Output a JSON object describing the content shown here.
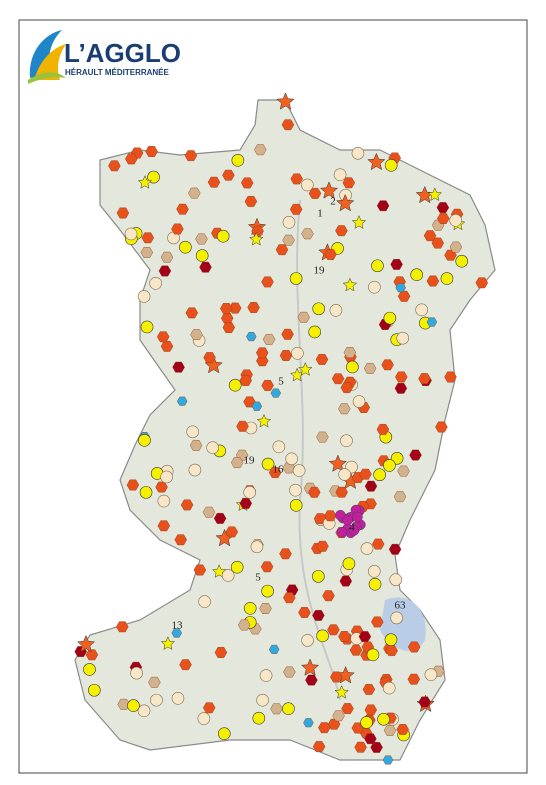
{
  "logo": {
    "title": "L’AGGLO",
    "subtitle": "HÉRAULT MÉDITERRANÉE"
  },
  "map": {
    "labels": [
      "1",
      "2",
      "19",
      "5",
      "16",
      "13",
      "63",
      "4",
      "19",
      "5"
    ]
  }
}
